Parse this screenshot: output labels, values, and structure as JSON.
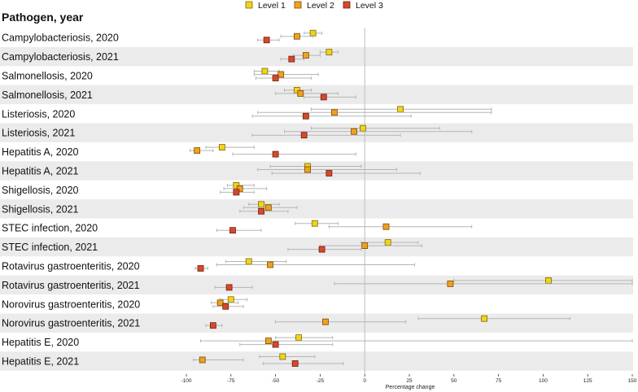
{
  "chart_data": {
    "type": "scatter",
    "subtype": "forest-plot",
    "column_header": "Pathogen, year",
    "xlabel": "Percentage change",
    "xlim": [
      -100,
      150
    ],
    "xticks": [
      -100,
      -75,
      -50,
      -25,
      0,
      25,
      50,
      75,
      100,
      125,
      150
    ],
    "reference_line": 0,
    "legend": [
      {
        "name": "Level 1",
        "color": "#f2d31b"
      },
      {
        "name": "Level 2",
        "color": "#f0a11e"
      },
      {
        "name": "Level 3",
        "color": "#d9472b"
      }
    ],
    "rows": [
      {
        "label": "Campylobacteriosis, 2020",
        "points": [
          {
            "level": 1,
            "value": -29,
            "low": -34,
            "high": -24
          },
          {
            "level": 2,
            "value": -38,
            "low": -47,
            "high": -29
          },
          {
            "level": 3,
            "value": -55,
            "low": -60,
            "high": -48
          }
        ]
      },
      {
        "label": "Campylobacteriosis, 2021",
        "points": [
          {
            "level": 1,
            "value": -20,
            "low": -25,
            "high": -15
          },
          {
            "level": 2,
            "value": -33,
            "low": -40,
            "high": -25
          },
          {
            "level": 3,
            "value": -41,
            "low": -47,
            "high": -34
          }
        ]
      },
      {
        "label": "Salmonellosis, 2020",
        "points": [
          {
            "level": 1,
            "value": -56,
            "low": -62,
            "high": -48
          },
          {
            "level": 2,
            "value": -47,
            "low": -62,
            "high": -26
          },
          {
            "level": 3,
            "value": -50,
            "low": -61,
            "high": -30
          }
        ]
      },
      {
        "label": "Salmonellosis, 2021",
        "points": [
          {
            "level": 1,
            "value": -38,
            "low": -45,
            "high": -30
          },
          {
            "level": 2,
            "value": -36,
            "low": -50,
            "high": -15
          },
          {
            "level": 3,
            "value": -23,
            "low": -34,
            "high": -5
          }
        ]
      },
      {
        "label": "Listeriosis, 2020",
        "points": [
          {
            "level": 1,
            "value": 20,
            "low": -30,
            "high": 71
          },
          {
            "level": 2,
            "value": -17,
            "low": -60,
            "high": 71
          },
          {
            "level": 3,
            "value": -33,
            "low": -63,
            "high": 26
          }
        ]
      },
      {
        "label": "Listeriosis, 2021",
        "points": [
          {
            "level": 1,
            "value": -1,
            "low": -30,
            "high": 42
          },
          {
            "level": 2,
            "value": -6,
            "low": -45,
            "high": 60
          },
          {
            "level": 3,
            "value": -34,
            "low": -63,
            "high": 20
          }
        ]
      },
      {
        "label": "Hepatitis A, 2020",
        "points": [
          {
            "level": 1,
            "value": -80,
            "low": -89,
            "high": -62
          },
          {
            "level": 2,
            "value": -94,
            "low": -98,
            "high": -85
          },
          {
            "level": 3,
            "value": -50,
            "low": -74,
            "high": -5
          }
        ]
      },
      {
        "label": "Hepatitis A, 2021",
        "points": [
          {
            "level": 1,
            "value": -32,
            "low": -53,
            "high": -2
          },
          {
            "level": 2,
            "value": -32,
            "low": -60,
            "high": 18
          },
          {
            "level": 3,
            "value": -20,
            "low": -52,
            "high": 31
          }
        ]
      },
      {
        "label": "Shigellosis, 2020",
        "points": [
          {
            "level": 1,
            "value": -72,
            "low": -77,
            "high": -62
          },
          {
            "level": 2,
            "value": -70,
            "low": -79,
            "high": -55
          },
          {
            "level": 3,
            "value": -72,
            "low": -81,
            "high": -62
          }
        ]
      },
      {
        "label": "Shigellosis, 2021",
        "points": [
          {
            "level": 1,
            "value": -58,
            "low": -65,
            "high": -48
          },
          {
            "level": 2,
            "value": -54,
            "low": -68,
            "high": -38
          },
          {
            "level": 3,
            "value": -58,
            "low": -70,
            "high": -43
          }
        ]
      },
      {
        "label": "STEC infection, 2020",
        "points": [
          {
            "level": 1,
            "value": -28,
            "low": -39,
            "high": -15
          },
          {
            "level": 2,
            "value": 12,
            "low": -20,
            "high": 60
          },
          {
            "level": 3,
            "value": -74,
            "low": -83,
            "high": -58
          }
        ]
      },
      {
        "label": "STEC infection, 2021",
        "points": [
          {
            "level": 1,
            "value": 13,
            "low": -2,
            "high": 30
          },
          {
            "level": 2,
            "value": 0,
            "low": -25,
            "high": 32
          },
          {
            "level": 3,
            "value": -24,
            "low": -43,
            "high": -2
          }
        ]
      },
      {
        "label": "Rotavirus gastroenteritis, 2020",
        "points": [
          {
            "level": 1,
            "value": -65,
            "low": -78,
            "high": -44
          },
          {
            "level": 2,
            "value": -53,
            "low": -83,
            "high": 28
          },
          {
            "level": 3,
            "value": -92,
            "low": -95,
            "high": -88
          }
        ]
      },
      {
        "label": "Rotavirus gastroenteritis, 2021",
        "points": [
          {
            "level": 1,
            "value": 103,
            "low": 50,
            "high": 150
          },
          {
            "level": 2,
            "value": 48,
            "low": -17,
            "high": 150
          },
          {
            "level": 3,
            "value": -76,
            "low": -84,
            "high": -63
          }
        ]
      },
      {
        "label": "Norovirus gastroenteritis, 2020",
        "points": [
          {
            "level": 1,
            "value": -75,
            "low": -81,
            "high": -66
          },
          {
            "level": 2,
            "value": -81,
            "low": -86,
            "high": -71
          },
          {
            "level": 3,
            "value": -78,
            "low": -85,
            "high": -68
          }
        ]
      },
      {
        "label": "Norovirus gastroenteritis, 2021",
        "points": [
          {
            "level": 1,
            "value": 67,
            "low": 30,
            "high": 115
          },
          {
            "level": 2,
            "value": -22,
            "low": -50,
            "high": 23
          },
          {
            "level": 3,
            "value": -85,
            "low": -89,
            "high": -80
          }
        ]
      },
      {
        "label": "Hepatitis E, 2020",
        "points": [
          {
            "level": 1,
            "value": -37,
            "low": -50,
            "high": -18
          },
          {
            "level": 2,
            "value": -54,
            "low": -92,
            "high": 150
          },
          {
            "level": 3,
            "value": -50,
            "low": -70,
            "high": -18
          }
        ]
      },
      {
        "label": "Hepatitis E, 2021",
        "points": [
          {
            "level": 1,
            "value": -46,
            "low": -59,
            "high": -28
          },
          {
            "level": 2,
            "value": -91,
            "low": -96,
            "high": -68
          },
          {
            "level": 3,
            "value": -39,
            "low": -57,
            "high": -12
          }
        ]
      }
    ]
  }
}
